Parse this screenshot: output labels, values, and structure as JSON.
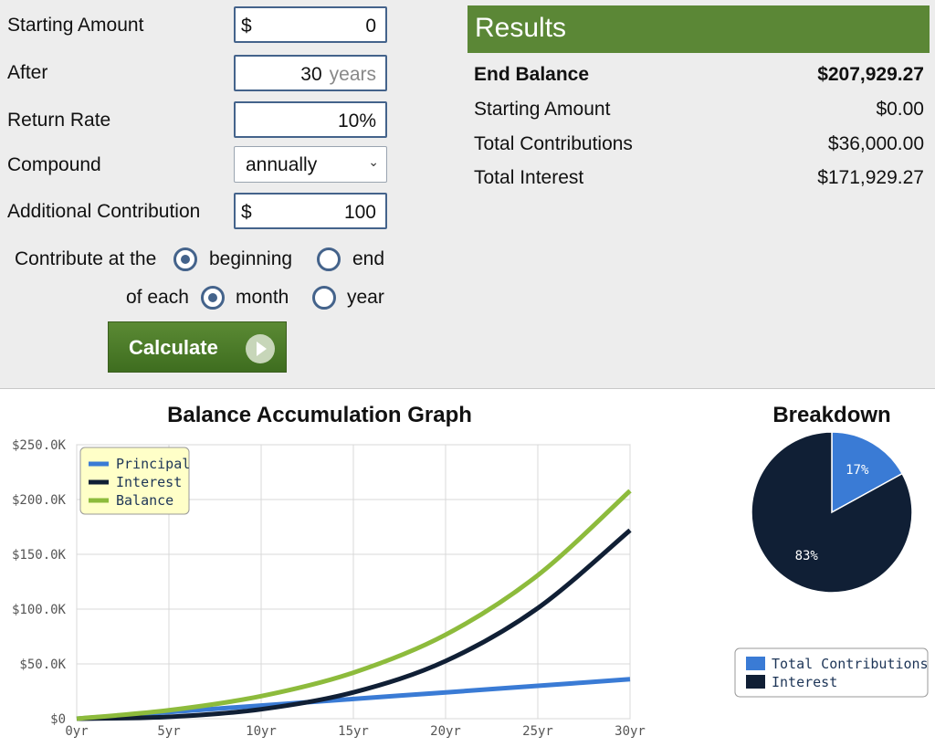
{
  "form": {
    "starting_amount": {
      "label": "Starting Amount",
      "prefix": "$",
      "value": "0"
    },
    "after": {
      "label": "After",
      "value": "30",
      "unit": "years"
    },
    "return_rate": {
      "label": "Return Rate",
      "value": "10",
      "unit": "%"
    },
    "compound": {
      "label": "Compound",
      "value": "annually"
    },
    "additional_contribution": {
      "label": "Additional Contribution",
      "prefix": "$",
      "value": "100"
    },
    "contribute_at": {
      "label": "Contribute at the",
      "options": [
        "beginning",
        "end"
      ],
      "selected": "beginning"
    },
    "each": {
      "label": "of each",
      "options": [
        "month",
        "year"
      ],
      "selected": "month"
    },
    "calculate_label": "Calculate"
  },
  "results": {
    "title": "Results",
    "rows": [
      {
        "label": "End Balance",
        "value": "$207,929.27"
      },
      {
        "label": "Starting Amount",
        "value": "$0.00"
      },
      {
        "label": "Total Contributions",
        "value": "$36,000.00"
      },
      {
        "label": "Total Interest",
        "value": "$171,929.27"
      }
    ]
  },
  "colors": {
    "principal": "#3a7bd5",
    "interest": "#101f35",
    "balance": "#8dbb3c",
    "accent_green": "#5b8736",
    "field_border": "#44638b"
  },
  "chart_data": [
    {
      "type": "line",
      "title": "Balance Accumulation Graph",
      "x": [
        0,
        5,
        10,
        15,
        20,
        25,
        30
      ],
      "x_tick_labels": [
        "0yr",
        "5yr",
        "10yr",
        "15yr",
        "20yr",
        "25yr",
        "30yr"
      ],
      "y_tick_labels": [
        "$0",
        "$50.0K",
        "$100.0K",
        "$150.0K",
        "$200.0K",
        "$250.0K"
      ],
      "ylim": [
        0,
        250000
      ],
      "grid": true,
      "legend_position": "top-left",
      "series": [
        {
          "name": "Principal",
          "values": [
            0,
            6000,
            12000,
            18000,
            24000,
            30000,
            36000
          ]
        },
        {
          "name": "Interest",
          "values": [
            0,
            1700,
            8600,
            24000,
            52600,
            100900,
            171900
          ]
        },
        {
          "name": "Balance",
          "values": [
            0,
            7700,
            20600,
            42000,
            76600,
            130900,
            207900
          ]
        }
      ]
    },
    {
      "type": "pie",
      "title": "Breakdown",
      "categories": [
        "Total Contributions",
        "Interest"
      ],
      "values": [
        17,
        83
      ],
      "value_labels": [
        "17%",
        "83%"
      ],
      "legend_position": "bottom"
    }
  ]
}
